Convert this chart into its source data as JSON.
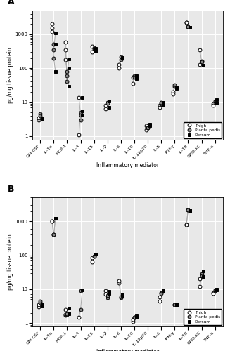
{
  "x_labels": [
    "GM-CSF",
    "IL-1α",
    "MCP-1",
    "IL-4",
    "IL-15",
    "IL-2",
    "IL-6",
    "IL-10",
    "IL-12p70",
    "IL-5",
    "IFN-γ",
    "IL-18",
    "GRO-KC",
    "TNF-α"
  ],
  "panel_A": {
    "thigh": [
      3.0,
      2000,
      600,
      1.1,
      300,
      8.0,
      100,
      35,
      2.0,
      8.0,
      20,
      2200,
      350,
      9.0
    ],
    "thigh2": [
      3.5,
      1500,
      350,
      14,
      450,
      6.5,
      130,
      55,
      1.5,
      7.0,
      17,
      2200,
      130,
      8.0
    ],
    "thigh3": [
      null,
      1200,
      180,
      null,
      null,
      null,
      null,
      null,
      null,
      null,
      null,
      null,
      null,
      null
    ],
    "planta": [
      4.5,
      200,
      40,
      5.0,
      360,
      10.0,
      180,
      60,
      1.8,
      9.0,
      30,
      1700,
      160,
      10.5
    ],
    "planta2": [
      4.0,
      350,
      60,
      4.2,
      400,
      9.5,
      220,
      55,
      1.8,
      10.0,
      32,
      1700,
      155,
      11.0
    ],
    "planta3": [
      null,
      500,
      80,
      3.0,
      null,
      null,
      null,
      null,
      null,
      null,
      null,
      null,
      null,
      null
    ],
    "dorsum": [
      3.2,
      80,
      30,
      4.2,
      320,
      7.0,
      200,
      50,
      2.2,
      8.5,
      25,
      1600,
      120,
      9.5
    ],
    "dorsum2": [
      3.5,
      1100,
      190,
      5.5,
      380,
      11.0,
      210,
      60,
      2.0,
      10.0,
      28,
      1600,
      125,
      12.0
    ],
    "dorsum3": [
      null,
      500,
      100,
      14,
      null,
      null,
      null,
      null,
      null,
      null,
      null,
      null,
      null,
      null
    ]
  },
  "panel_B": {
    "thigh": [
      3.0,
      1000,
      1.7,
      1.5,
      65,
      9.0,
      15,
      1.1,
      null,
      4.5,
      null,
      800,
      20,
      8.0
    ],
    "thigh2": [
      3.5,
      1000,
      1.8,
      null,
      85,
      7.0,
      18,
      1.3,
      null,
      6.0,
      null,
      800,
      12,
      7.5
    ],
    "thigh3": [
      null,
      null,
      2.5,
      null,
      null,
      null,
      null,
      null,
      null,
      null,
      null,
      null,
      null,
      null
    ],
    "planta": [
      4.0,
      400,
      1.8,
      2.5,
      95,
      5.5,
      5.5,
      1.5,
      null,
      8.0,
      3.5,
      2200,
      28,
      9.0
    ],
    "planta2": [
      4.5,
      400,
      1.8,
      9.0,
      95,
      6.5,
      6.0,
      1.5,
      null,
      7.5,
      3.5,
      2200,
      25,
      9.5
    ],
    "planta3": [
      null,
      null,
      1.9,
      null,
      null,
      null,
      null,
      null,
      null,
      null,
      null,
      null,
      null,
      null
    ],
    "dorsum": [
      3.5,
      1200,
      1.9,
      9.5,
      110,
      7.5,
      6.5,
      1.6,
      null,
      8.5,
      3.5,
      2100,
      35,
      9.5
    ],
    "dorsum2": [
      3.2,
      1200,
      2.0,
      null,
      110,
      8.5,
      7.0,
      1.5,
      null,
      9.0,
      3.5,
      2100,
      23,
      10.0
    ],
    "dorsum3": [
      null,
      null,
      2.8,
      null,
      null,
      null,
      null,
      null,
      null,
      null,
      null,
      null,
      null,
      null
    ]
  },
  "ylim": [
    0.8,
    5000
  ],
  "ylabel": "pg/mg tissue protein",
  "xlabel": "Inflammatory mediator",
  "bg_color": "#e8e8e8",
  "panel_labels": [
    "A",
    "B"
  ]
}
